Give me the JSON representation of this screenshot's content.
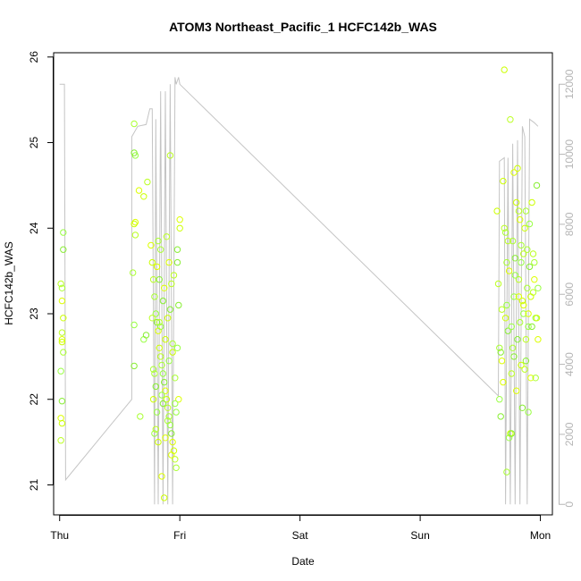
{
  "chart_data": {
    "type": "scatter",
    "title": "ATOM3 Northeast_Pacific_1 HCFC142b_WAS",
    "xlabel": "Date",
    "ylabel": "HCFC142b_WAS",
    "x_axis": {
      "unit": "days",
      "range": [
        -0.05,
        4.1
      ],
      "ticks": [
        {
          "value": 0,
          "label": "Thu"
        },
        {
          "value": 1,
          "label": "Fri"
        },
        {
          "value": 2,
          "label": "Sat"
        },
        {
          "value": 3,
          "label": "Sun"
        },
        {
          "value": 4,
          "label": "Mon"
        }
      ]
    },
    "y_axis_left": {
      "range": [
        20.65,
        26.05
      ],
      "ticks": [
        {
          "value": 21,
          "label": "21"
        },
        {
          "value": 22,
          "label": "22"
        },
        {
          "value": 23,
          "label": "23"
        },
        {
          "value": 24,
          "label": "24"
        },
        {
          "value": 25,
          "label": "25"
        },
        {
          "value": 26,
          "label": "26"
        }
      ]
    },
    "y_axis_right": {
      "range": [
        -300,
        12900
      ],
      "color": "#b5b5b5",
      "ticks": [
        {
          "value": 0,
          "label": "0"
        },
        {
          "value": 2000,
          "label": "2000"
        },
        {
          "value": 4000,
          "label": "4000"
        },
        {
          "value": 6000,
          "label": "6000"
        },
        {
          "value": 8000,
          "label": "8000"
        },
        {
          "value": 10000,
          "label": "10000"
        },
        {
          "value": 12000,
          "label": "12000"
        }
      ]
    },
    "grid": false,
    "legend": "none",
    "line_series": {
      "axis": "right",
      "color": "#c4c4c4",
      "points": [
        [
          0.0,
          12000
        ],
        [
          0.04,
          12000
        ],
        [
          0.05,
          700
        ],
        [
          0.6,
          3000
        ],
        [
          0.6,
          10500
        ],
        [
          0.65,
          10800
        ],
        [
          0.72,
          10850
        ],
        [
          0.75,
          11300
        ],
        [
          0.77,
          11300
        ],
        [
          0.79,
          0
        ],
        [
          0.8,
          11000
        ],
        [
          0.82,
          0
        ],
        [
          0.84,
          11800
        ],
        [
          0.86,
          0
        ],
        [
          0.88,
          11800
        ],
        [
          0.9,
          0
        ],
        [
          0.92,
          12000
        ],
        [
          0.94,
          0
        ],
        [
          0.96,
          12200
        ],
        [
          0.97,
          12000
        ],
        [
          0.99,
          12200
        ],
        [
          1.0,
          12000
        ],
        [
          1.0,
          12000
        ],
        [
          3.65,
          3100
        ],
        [
          3.66,
          9800
        ],
        [
          3.7,
          9900
        ],
        [
          3.71,
          0
        ],
        [
          3.73,
          9900
        ],
        [
          3.75,
          0
        ],
        [
          3.77,
          10300
        ],
        [
          3.79,
          0
        ],
        [
          3.81,
          10400
        ],
        [
          3.83,
          0
        ],
        [
          3.85,
          10800
        ],
        [
          3.87,
          10500
        ],
        [
          3.89,
          0
        ],
        [
          3.91,
          11000
        ],
        [
          3.95,
          10900
        ],
        [
          3.98,
          10800
        ]
      ]
    },
    "scatter_series": {
      "axis": "left",
      "marker": "open-circle",
      "colors": [
        "#ddff00",
        "#ccff00",
        "#bbff22",
        "#aaff33",
        "#99ff44",
        "#88ee33"
      ],
      "points": [
        [
          0.02,
          22.7
        ],
        [
          0.02,
          22.67
        ],
        [
          0.01,
          23.35
        ],
        [
          0.02,
          23.3
        ],
        [
          0.03,
          23.95
        ],
        [
          0.03,
          23.75
        ],
        [
          0.02,
          23.15
        ],
        [
          0.03,
          22.95
        ],
        [
          0.02,
          22.78
        ],
        [
          0.03,
          22.55
        ],
        [
          0.01,
          22.33
        ],
        [
          0.02,
          21.98
        ],
        [
          0.01,
          21.78
        ],
        [
          0.02,
          21.72
        ],
        [
          0.01,
          21.52
        ],
        [
          0.62,
          25.22
        ],
        [
          0.63,
          24.85
        ],
        [
          0.62,
          24.88
        ],
        [
          0.63,
          24.07
        ],
        [
          0.62,
          24.05
        ],
        [
          0.63,
          23.92
        ],
        [
          0.61,
          23.48
        ],
        [
          0.62,
          22.87
        ],
        [
          0.62,
          22.39
        ],
        [
          0.66,
          24.44
        ],
        [
          0.7,
          24.37
        ],
        [
          0.73,
          24.54
        ],
        [
          0.67,
          21.8
        ],
        [
          0.7,
          22.7
        ],
        [
          0.72,
          22.75
        ],
        [
          0.76,
          23.8
        ],
        [
          0.77,
          23.6
        ],
        [
          0.78,
          23.4
        ],
        [
          0.79,
          23.2
        ],
        [
          0.8,
          23.0
        ],
        [
          0.81,
          22.9
        ],
        [
          0.82,
          22.8
        ],
        [
          0.83,
          22.6
        ],
        [
          0.84,
          22.5
        ],
        [
          0.85,
          22.4
        ],
        [
          0.86,
          22.3
        ],
        [
          0.87,
          22.2
        ],
        [
          0.88,
          22.1
        ],
        [
          0.89,
          22.0
        ],
        [
          0.9,
          21.9
        ],
        [
          0.91,
          21.8
        ],
        [
          0.92,
          21.7
        ],
        [
          0.93,
          21.6
        ],
        [
          0.94,
          21.5
        ],
        [
          0.95,
          21.4
        ],
        [
          0.96,
          21.3
        ],
        [
          0.97,
          21.2
        ],
        [
          0.98,
          22.6
        ],
        [
          0.99,
          23.1
        ],
        [
          1.0,
          24.1
        ],
        [
          1.0,
          24.0
        ],
        [
          0.77,
          22.95
        ],
        [
          0.78,
          22.35
        ],
        [
          0.79,
          21.6
        ],
        [
          0.8,
          22.15
        ],
        [
          0.81,
          23.55
        ],
        [
          0.82,
          21.5
        ],
        [
          0.83,
          22.9
        ],
        [
          0.84,
          23.75
        ],
        [
          0.85,
          22.05
        ],
        [
          0.86,
          21.95
        ],
        [
          0.87,
          23.3
        ],
        [
          0.88,
          22.7
        ],
        [
          0.89,
          23.9
        ],
        [
          0.9,
          21.75
        ],
        [
          0.91,
          22.45
        ],
        [
          0.92,
          23.05
        ],
        [
          0.93,
          21.35
        ],
        [
          0.94,
          22.55
        ],
        [
          0.95,
          23.45
        ],
        [
          0.96,
          22.25
        ],
        [
          0.97,
          21.85
        ],
        [
          0.98,
          23.6
        ],
        [
          0.99,
          22.0
        ],
        [
          0.78,
          22.0
        ],
        [
          0.8,
          21.65
        ],
        [
          0.82,
          23.85
        ],
        [
          0.84,
          22.85
        ],
        [
          0.86,
          23.15
        ],
        [
          0.88,
          21.55
        ],
        [
          0.9,
          22.95
        ],
        [
          0.92,
          24.85
        ],
        [
          0.94,
          22.65
        ],
        [
          0.96,
          21.95
        ],
        [
          0.98,
          23.75
        ],
        [
          0.85,
          21.1
        ],
        [
          0.87,
          20.85
        ],
        [
          0.93,
          23.35
        ],
        [
          0.79,
          22.3
        ],
        [
          0.81,
          21.85
        ],
        [
          0.83,
          23.4
        ],
        [
          0.91,
          23.6
        ],
        [
          3.64,
          24.2
        ],
        [
          3.65,
          23.35
        ],
        [
          3.66,
          22.6
        ],
        [
          3.66,
          22.0
        ],
        [
          3.67,
          21.8
        ],
        [
          3.68,
          22.45
        ],
        [
          3.69,
          24.55
        ],
        [
          3.7,
          24.0
        ],
        [
          3.71,
          23.95
        ],
        [
          3.72,
          23.1
        ],
        [
          3.73,
          22.8
        ],
        [
          3.74,
          23.5
        ],
        [
          3.75,
          21.6
        ],
        [
          3.76,
          22.3
        ],
        [
          3.77,
          23.85
        ],
        [
          3.78,
          23.2
        ],
        [
          3.79,
          23.65
        ],
        [
          3.8,
          22.1
        ],
        [
          3.81,
          24.7
        ],
        [
          3.82,
          23.4
        ],
        [
          3.83,
          22.9
        ],
        [
          3.84,
          23.6
        ],
        [
          3.85,
          21.9
        ],
        [
          3.86,
          23.1
        ],
        [
          3.87,
          24.0
        ],
        [
          3.88,
          22.7
        ],
        [
          3.89,
          23.3
        ],
        [
          3.9,
          21.85
        ],
        [
          3.91,
          23.55
        ],
        [
          3.92,
          22.25
        ],
        [
          3.93,
          24.3
        ],
        [
          3.94,
          23.25
        ],
        [
          3.95,
          23.6
        ],
        [
          3.96,
          22.95
        ],
        [
          3.97,
          24.5
        ],
        [
          3.98,
          22.7
        ],
        [
          3.7,
          25.85
        ],
        [
          3.75,
          25.27
        ],
        [
          3.72,
          21.15
        ],
        [
          3.74,
          21.55
        ],
        [
          3.76,
          21.6
        ],
        [
          3.78,
          24.65
        ],
        [
          3.8,
          24.3
        ],
        [
          3.82,
          24.2
        ],
        [
          3.84,
          23.8
        ],
        [
          3.86,
          23.0
        ],
        [
          3.88,
          22.45
        ],
        [
          3.9,
          23.0
        ],
        [
          3.92,
          23.2
        ],
        [
          3.94,
          23.7
        ],
        [
          3.96,
          22.25
        ],
        [
          3.98,
          23.3
        ],
        [
          3.67,
          22.55
        ],
        [
          3.69,
          22.2
        ],
        [
          3.71,
          22.95
        ],
        [
          3.73,
          23.85
        ],
        [
          3.77,
          22.6
        ],
        [
          3.79,
          23.45
        ],
        [
          3.81,
          22.7
        ],
        [
          3.83,
          24.1
        ],
        [
          3.85,
          23.15
        ],
        [
          3.87,
          22.35
        ],
        [
          3.89,
          23.75
        ],
        [
          3.91,
          24.05
        ],
        [
          3.93,
          22.85
        ],
        [
          3.95,
          23.4
        ],
        [
          3.97,
          22.95
        ],
        [
          3.68,
          23.05
        ],
        [
          3.72,
          23.6
        ],
        [
          3.76,
          22.85
        ],
        [
          3.78,
          22.5
        ],
        [
          3.82,
          23.2
        ],
        [
          3.84,
          22.4
        ],
        [
          3.86,
          23.7
        ],
        [
          3.88,
          24.2
        ],
        [
          3.9,
          22.85
        ]
      ]
    }
  }
}
